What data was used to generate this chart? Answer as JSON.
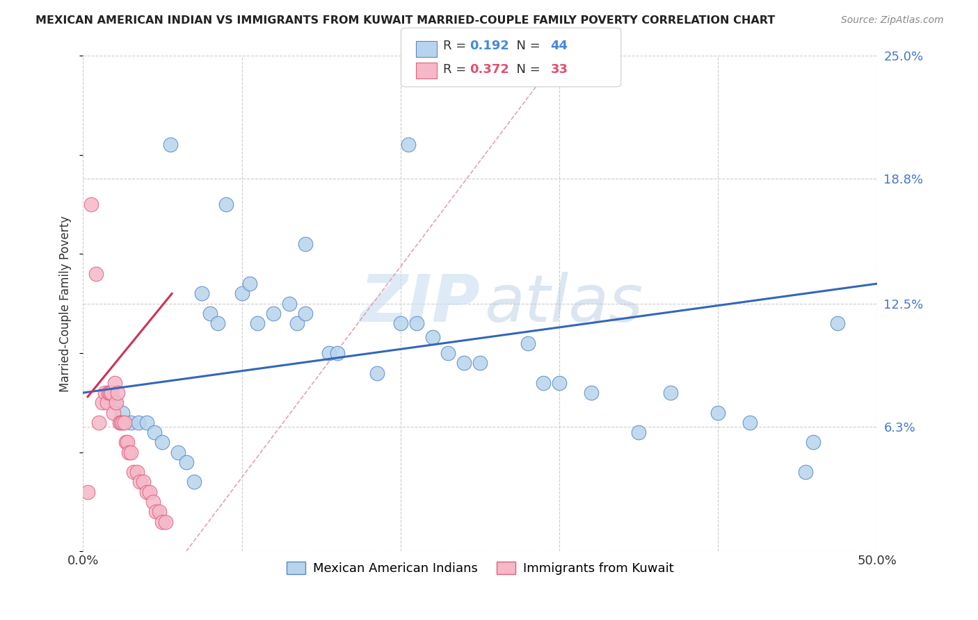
{
  "title": "MEXICAN AMERICAN INDIAN VS IMMIGRANTS FROM KUWAIT MARRIED-COUPLE FAMILY POVERTY CORRELATION CHART",
  "source": "Source: ZipAtlas.com",
  "ylabel": "Married-Couple Family Poverty",
  "xlim": [
    0.0,
    0.5
  ],
  "ylim": [
    0.0,
    0.25
  ],
  "yticks_right": [
    0.0,
    0.063,
    0.125,
    0.188,
    0.25
  ],
  "ytick_labels_right": [
    "",
    "6.3%",
    "12.5%",
    "18.8%",
    "25.0%"
  ],
  "watermark_zip": "ZIP",
  "watermark_atlas": "atlas",
  "legend_blue_R": "0.192",
  "legend_blue_N": "44",
  "legend_pink_R": "0.372",
  "legend_pink_N": "33",
  "blue_fill": "#b8d4ec",
  "blue_edge": "#5588cc",
  "pink_fill": "#f5b8c8",
  "pink_edge": "#e06080",
  "blue_line_color": "#3366bb",
  "pink_line_color": "#cc3355",
  "dash_line_color": "#e8a0b0",
  "grid_color": "#cccccc",
  "blue_scatter_x": [
    0.055,
    0.09,
    0.14,
    0.205,
    0.075,
    0.08,
    0.085,
    0.1,
    0.105,
    0.11,
    0.12,
    0.13,
    0.135,
    0.14,
    0.155,
    0.16,
    0.185,
    0.2,
    0.21,
    0.22,
    0.23,
    0.24,
    0.25,
    0.28,
    0.29,
    0.3,
    0.32,
    0.35,
    0.37,
    0.4,
    0.42,
    0.455,
    0.46,
    0.02,
    0.025,
    0.03,
    0.035,
    0.04,
    0.045,
    0.05,
    0.06,
    0.065,
    0.07,
    0.475
  ],
  "blue_scatter_y": [
    0.205,
    0.175,
    0.155,
    0.205,
    0.13,
    0.12,
    0.115,
    0.13,
    0.135,
    0.115,
    0.12,
    0.125,
    0.115,
    0.12,
    0.1,
    0.1,
    0.09,
    0.115,
    0.115,
    0.108,
    0.1,
    0.095,
    0.095,
    0.105,
    0.085,
    0.085,
    0.08,
    0.06,
    0.08,
    0.07,
    0.065,
    0.04,
    0.055,
    0.075,
    0.07,
    0.065,
    0.065,
    0.065,
    0.06,
    0.055,
    0.05,
    0.045,
    0.035,
    0.115
  ],
  "pink_scatter_x": [
    0.005,
    0.008,
    0.01,
    0.012,
    0.014,
    0.015,
    0.016,
    0.017,
    0.018,
    0.019,
    0.02,
    0.021,
    0.022,
    0.023,
    0.024,
    0.025,
    0.026,
    0.027,
    0.028,
    0.029,
    0.03,
    0.032,
    0.034,
    0.036,
    0.038,
    0.04,
    0.042,
    0.044,
    0.046,
    0.048,
    0.05,
    0.052,
    0.003
  ],
  "pink_scatter_y": [
    0.175,
    0.14,
    0.065,
    0.075,
    0.08,
    0.075,
    0.08,
    0.08,
    0.08,
    0.07,
    0.085,
    0.075,
    0.08,
    0.065,
    0.065,
    0.065,
    0.065,
    0.055,
    0.055,
    0.05,
    0.05,
    0.04,
    0.04,
    0.035,
    0.035,
    0.03,
    0.03,
    0.025,
    0.02,
    0.02,
    0.015,
    0.015,
    0.03
  ],
  "blue_trend_x": [
    0.0,
    0.5
  ],
  "blue_trend_y": [
    0.08,
    0.135
  ],
  "pink_trend_x": [
    0.003,
    0.056
  ],
  "pink_trend_y": [
    0.078,
    0.13
  ],
  "dash_line_x": [
    0.065,
    0.3
  ],
  "dash_line_y": [
    0.0,
    0.25
  ]
}
